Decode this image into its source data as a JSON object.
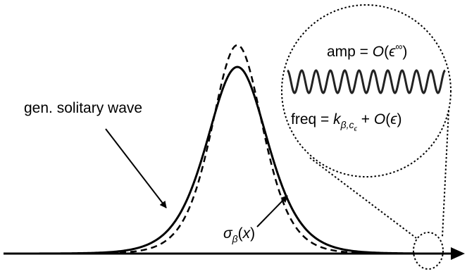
{
  "labels": {
    "solitary_wave": "gen. solitary wave",
    "sigma_symbol": "σ",
    "sigma_subscript": "β",
    "sigma_arg_open": "(",
    "sigma_arg_var": "x",
    "sigma_arg_close": ")",
    "amp_prefix": "amp = ",
    "amp_order": "O",
    "amp_open": "(",
    "amp_eps": "ϵ",
    "amp_sup": "∞",
    "amp_close": ")",
    "freq_prefix": "freq = ",
    "freq_k": "k",
    "freq_sub_beta": "β,c",
    "freq_sub_eps": "ϵ",
    "freq_plus": " + ",
    "freq_order": "O",
    "freq_open": "(",
    "freq_eps": "ϵ",
    "freq_close": ")"
  },
  "curves": {
    "solid": "generalized solitary wave",
    "dashed": "sigma_beta(x)",
    "ripple_periods": 11
  },
  "colors": {
    "stroke": "#000000",
    "ripple": "#222222",
    "background": "#ffffff"
  }
}
